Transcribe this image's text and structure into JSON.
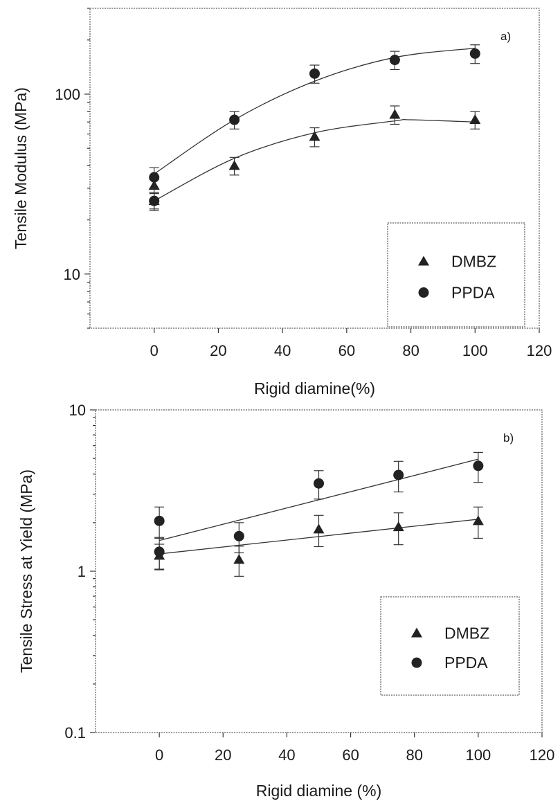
{
  "chart_data": [
    {
      "type": "scatter",
      "panel_label": "a)",
      "xlabel": "Rigid diamine(%)",
      "ylabel": "Tensile Modulus (MPa)",
      "xlim": [
        -20,
        120
      ],
      "ylim": [
        5,
        300
      ],
      "yscale": "log",
      "xticks": [
        0,
        20,
        40,
        60,
        80,
        100,
        120
      ],
      "yticks": [
        10,
        100
      ],
      "ytick_labels": [
        "10",
        "100"
      ],
      "grid": false,
      "legend": {
        "position": "lower-right",
        "entries": [
          "DMBZ",
          "PPDA"
        ]
      },
      "series": [
        {
          "name": "DMBZ",
          "marker": "triangle",
          "points": [
            {
              "x": 0,
              "y": 25.5,
              "err": 2.5
            },
            {
              "x": 0,
              "y": 31,
              "err": 2.5
            },
            {
              "x": 25,
              "y": 40,
              "err": 4.5
            },
            {
              "x": 50,
              "y": 58,
              "err": 7
            },
            {
              "x": 75,
              "y": 77,
              "err": 9
            },
            {
              "x": 100,
              "y": 72,
              "err": 8
            }
          ],
          "fit": [
            [
              0,
              25.5
            ],
            [
              25,
              44
            ],
            [
              50,
              61
            ],
            [
              75,
              71
            ],
            [
              80,
              72
            ],
            [
              100,
              70
            ]
          ]
        },
        {
          "name": "PPDA",
          "marker": "circle",
          "points": [
            {
              "x": 0,
              "y": 25.5,
              "err": 3
            },
            {
              "x": 0,
              "y": 34.5,
              "err": 4.5
            },
            {
              "x": 25,
              "y": 72,
              "err": 8
            },
            {
              "x": 50,
              "y": 130,
              "err": 15
            },
            {
              "x": 75,
              "y": 155,
              "err": 18
            },
            {
              "x": 100,
              "y": 168,
              "err": 20
            }
          ],
          "fit": [
            [
              0,
              36
            ],
            [
              25,
              72
            ],
            [
              50,
              118
            ],
            [
              75,
              160
            ],
            [
              100,
              180
            ]
          ]
        }
      ]
    },
    {
      "type": "scatter",
      "panel_label": "b)",
      "xlabel": "Rigid diamine (%)",
      "ylabel": "Tensile Stress at Yield (MPa)",
      "xlim": [
        -20,
        120
      ],
      "ylim": [
        0.1,
        10
      ],
      "yscale": "log",
      "xticks": [
        0,
        20,
        40,
        60,
        80,
        100,
        120
      ],
      "yticks": [
        0.1,
        1,
        10
      ],
      "ytick_labels": [
        "0.1",
        "1",
        "10"
      ],
      "grid": false,
      "legend": {
        "position": "lower-right",
        "entries": [
          "DMBZ",
          "PPDA"
        ]
      },
      "series": [
        {
          "name": "DMBZ",
          "marker": "triangle",
          "points": [
            {
              "x": 0,
              "y": 1.25,
              "err": 0.22
            },
            {
              "x": 25,
              "y": 1.18,
              "err": 0.25
            },
            {
              "x": 50,
              "y": 1.82,
              "err": 0.4
            },
            {
              "x": 75,
              "y": 1.88,
              "err": 0.42
            },
            {
              "x": 100,
              "y": 2.05,
              "err": 0.45
            }
          ],
          "fit": [
            [
              0,
              1.28
            ],
            [
              100,
              2.1
            ]
          ]
        },
        {
          "name": "PPDA",
          "marker": "circle",
          "points": [
            {
              "x": 0,
              "y": 1.32,
              "err": 0.3
            },
            {
              "x": 0,
              "y": 2.05,
              "err": 0.45
            },
            {
              "x": 25,
              "y": 1.65,
              "err": 0.35
            },
            {
              "x": 50,
              "y": 3.5,
              "err": 0.7
            },
            {
              "x": 75,
              "y": 3.95,
              "err": 0.85
            },
            {
              "x": 100,
              "y": 4.5,
              "err": 0.95
            }
          ],
          "fit": [
            [
              0,
              1.55
            ],
            [
              100,
              4.95
            ]
          ]
        }
      ]
    }
  ]
}
